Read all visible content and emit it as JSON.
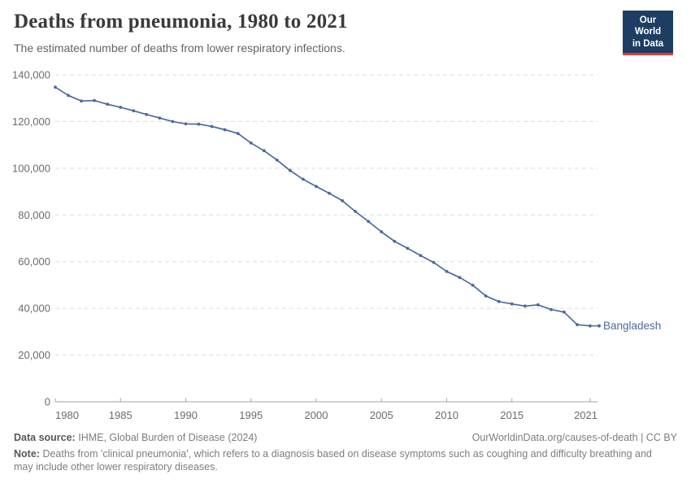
{
  "header": {
    "title": "Deaths from pneumonia, 1980 to 2021",
    "subtitle": "The estimated number of deaths from lower respiratory infections.",
    "logo": {
      "line1": "Our World",
      "line2": "in Data",
      "bg_color": "#1d3d63",
      "accent_color": "#dc3e31"
    }
  },
  "chart_data": {
    "type": "line",
    "title": "Deaths from pneumonia, 1980 to 2021",
    "xlabel": "",
    "ylabel": "",
    "xlim": [
      1980,
      2021
    ],
    "ylim": [
      0,
      140000
    ],
    "grid": "horizontal-dashed",
    "legend_position": "end-of-line-label",
    "x": [
      1980,
      1981,
      1982,
      1983,
      1984,
      1985,
      1986,
      1987,
      1988,
      1989,
      1990,
      1991,
      1992,
      1993,
      1994,
      1995,
      1996,
      1997,
      1998,
      1999,
      2000,
      2001,
      2002,
      2003,
      2004,
      2005,
      2006,
      2007,
      2008,
      2009,
      2010,
      2011,
      2012,
      2013,
      2014,
      2015,
      2016,
      2017,
      2018,
      2019,
      2020,
      2021
    ],
    "series": [
      {
        "name": "Bangladesh",
        "color": "#4C6A9C",
        "values": [
          134700,
          131200,
          128800,
          129000,
          127400,
          126100,
          124600,
          123000,
          121500,
          120000,
          119000,
          118900,
          117900,
          116500,
          114900,
          110800,
          107500,
          103500,
          99000,
          95300,
          92200,
          89300,
          86100,
          81500,
          77200,
          72800,
          68700,
          65700,
          62600,
          59700,
          55800,
          53200,
          49900,
          45300,
          42900,
          41900,
          41000,
          41500,
          39500,
          38400,
          33000,
          32500
        ]
      }
    ],
    "xticks": [
      1980,
      1985,
      1990,
      1995,
      2000,
      2005,
      2010,
      2015,
      2021
    ],
    "yticks": [
      0,
      20000,
      40000,
      60000,
      80000,
      100000,
      120000,
      140000
    ],
    "ytick_labels": [
      "0",
      "20,000",
      "40,000",
      "60,000",
      "80,000",
      "100,000",
      "120,000",
      "140,000"
    ],
    "colors": {
      "gridline": "#dbdbdb",
      "axis": "#a6a6a6",
      "tick_label": "#6b6b6b"
    }
  },
  "footer": {
    "datasource_label": "Data source:",
    "datasource_text": "IHME, Global Burden of Disease (2024)",
    "license_text": "OurWorldinData.org/causes-of-death | CC BY",
    "note_label": "Note:",
    "note_text": "Deaths from 'clinical pneumonia', which refers to a diagnosis based on disease symptoms such as coughing and difficulty breathing and may include other lower respiratory diseases."
  }
}
